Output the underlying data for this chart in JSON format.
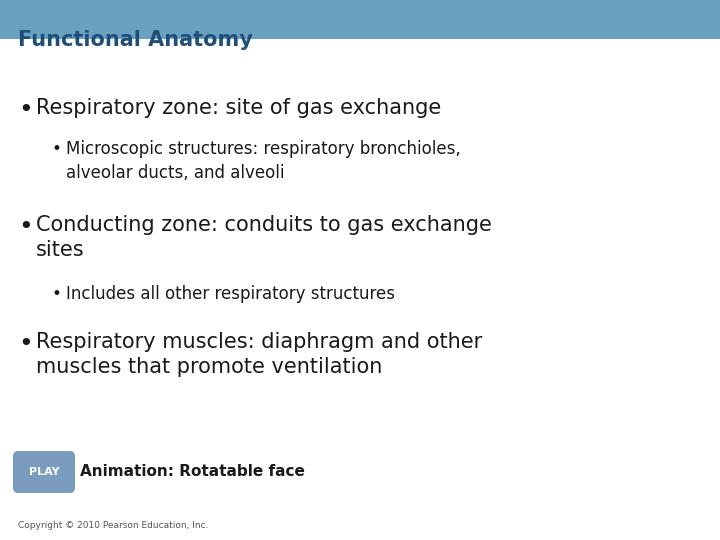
{
  "title": "Functional Anatomy",
  "title_color": "#1f4e79",
  "title_fontsize": 15,
  "header_bar_color": "#6aa0c0",
  "header_bar_height": 0.072,
  "content_bg": "#ffffff",
  "bullet1_text": "Respiratory zone: site of gas exchange",
  "bullet1_fontsize": 15,
  "bullet1_color": "#1a1a1a",
  "sub_bullet1_line1": "Microscopic structures: respiratory bronchioles,",
  "sub_bullet1_line2": "alveolar ducts, and alveoli",
  "sub_bullet_fontsize": 12,
  "sub_bullet_color": "#1a1a1a",
  "bullet2_line1": "Conducting zone: conduits to gas exchange",
  "bullet2_line2": "sites",
  "bullet2_fontsize": 15,
  "bullet2_color": "#1a1a1a",
  "sub_bullet2_text": "Includes all other respiratory structures",
  "bullet3_line1": "Respiratory muscles: diaphragm and other",
  "bullet3_line2": "muscles that promote ventilation",
  "bullet3_fontsize": 15,
  "bullet3_color": "#1a1a1a",
  "play_button_color": "#7a9dbf",
  "play_text_color": "#ffffff",
  "animation_text": "Animation: Rotatable face",
  "animation_fontsize": 11,
  "animation_color": "#1a1a1a",
  "copyright_text": "Copyright © 2010 Pearson Education, Inc.",
  "copyright_fontsize": 6.5,
  "copyright_color": "#555555"
}
